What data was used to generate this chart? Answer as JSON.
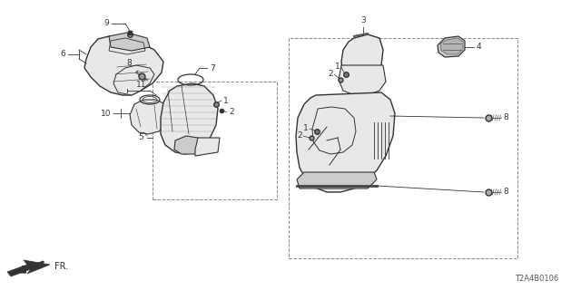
{
  "background_color": "#ffffff",
  "diagram_code": "T2A4B0106",
  "line_color": "#333333",
  "gray_fill": "#e8e8e8",
  "dark_fill": "#555555",
  "mid_fill": "#cccccc",
  "dashed_color": "#888888"
}
